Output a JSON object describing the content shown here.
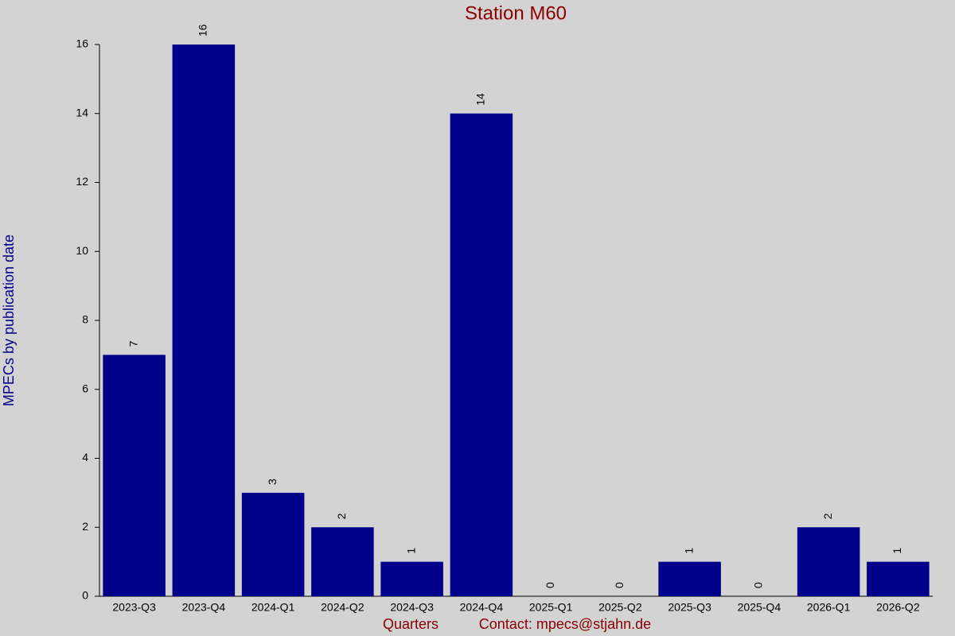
{
  "chart_data": {
    "type": "bar",
    "title": "Station M60",
    "x_label": "Quarters",
    "y_label": "MPECs by publication date",
    "annotation": "Contact: mpecs@stjahn.de",
    "categories": [
      "2023-Q3",
      "2023-Q4",
      "2024-Q1",
      "2024-Q2",
      "2024-Q3",
      "2024-Q4",
      "2025-Q1",
      "2025-Q2",
      "2025-Q3",
      "2025-Q4",
      "2026-Q1",
      "2026-Q2"
    ],
    "values": [
      7,
      16,
      3,
      2,
      1,
      14,
      0,
      0,
      1,
      0,
      2,
      1
    ],
    "color": "#00008b",
    "ylim": [
      0,
      16
    ],
    "yticks": [
      0,
      2,
      4,
      6,
      8,
      10,
      12,
      14,
      16
    ],
    "grid": false
  }
}
